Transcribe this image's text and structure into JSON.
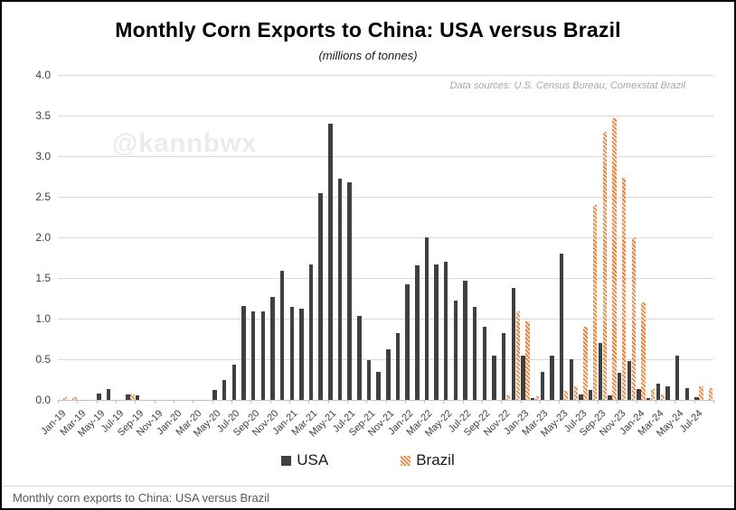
{
  "chart_data": {
    "type": "bar",
    "title": "Monthly Corn Exports to China: USA versus Brazil",
    "subtitle": "(millions of tonnes)",
    "source_note": "Data sources: U.S. Census Bureau; Comexstat Brazil",
    "watermark": "@kannbwx",
    "footer_caption": "Monthly corn exports to China: USA versus Brazil",
    "ylabel": "",
    "xlabel": "",
    "ylim": [
      0,
      4.0
    ],
    "y_ticks": [
      "0.0",
      "0.5",
      "1.0",
      "1.5",
      "2.0",
      "2.5",
      "3.0",
      "3.5",
      "4.0"
    ],
    "grid": true,
    "legend_position": "bottom",
    "x_label_every": 2,
    "categories": [
      "Jan-19",
      "Feb-19",
      "Mar-19",
      "Apr-19",
      "May-19",
      "Jun-19",
      "Jul-19",
      "Aug-19",
      "Sep-19",
      "Oct-19",
      "Nov-19",
      "Dec-19",
      "Jan-20",
      "Feb-20",
      "Mar-20",
      "Apr-20",
      "May-20",
      "Jun-20",
      "Jul-20",
      "Aug-20",
      "Sep-20",
      "Oct-20",
      "Nov-20",
      "Dec-20",
      "Jan-21",
      "Feb-21",
      "Mar-21",
      "Apr-21",
      "May-21",
      "Jun-21",
      "Jul-21",
      "Aug-21",
      "Sep-21",
      "Oct-21",
      "Nov-21",
      "Dec-21",
      "Jan-22",
      "Feb-22",
      "Mar-22",
      "Apr-22",
      "May-22",
      "Jun-22",
      "Jul-22",
      "Aug-22",
      "Sep-22",
      "Oct-22",
      "Nov-22",
      "Dec-22",
      "Jan-23",
      "Feb-23",
      "Mar-23",
      "Apr-23",
      "May-23",
      "Jun-23",
      "Jul-23",
      "Aug-23",
      "Sep-23",
      "Oct-23",
      "Nov-23",
      "Dec-23",
      "Jan-24",
      "Feb-24",
      "Mar-24",
      "Apr-24",
      "May-24",
      "Jun-24",
      "Jul-24",
      "Aug-24"
    ],
    "series": [
      {
        "name": "USA",
        "color": "#404040",
        "fill": "solid",
        "values": [
          0,
          0,
          0,
          0,
          0.08,
          0.13,
          0,
          0.07,
          0.06,
          0,
          0,
          0,
          0,
          0,
          0,
          0,
          0.12,
          0.25,
          0.43,
          1.16,
          1.09,
          1.09,
          1.27,
          1.59,
          1.15,
          1.12,
          1.67,
          2.55,
          3.4,
          2.72,
          2.68,
          1.03,
          0.49,
          0.34,
          0.62,
          0.82,
          1.42,
          1.66,
          2.0,
          1.67,
          1.7,
          1.22,
          1.47,
          1.14,
          0.9,
          0.55,
          0.82,
          1.38,
          0.54,
          0.02,
          0.35,
          0.55,
          1.8,
          0.5,
          0.07,
          0.12,
          0.7,
          0.06,
          0.33,
          0.48,
          0.13,
          0.02,
          0.2,
          0.17,
          0.55,
          0.15,
          0.03,
          0
        ]
      },
      {
        "name": "Brazil",
        "color": "#ed7d31",
        "fill": "diagonal-stripes",
        "values": [
          0.03,
          0.03,
          0,
          0,
          0,
          0,
          0,
          0.07,
          0,
          0,
          0,
          0,
          0,
          0,
          0,
          0,
          0,
          0,
          0,
          0,
          0,
          0,
          0,
          0,
          0,
          0,
          0,
          0,
          0,
          0,
          0,
          0,
          0,
          0,
          0,
          0,
          0,
          0,
          0,
          0,
          0,
          0,
          0,
          0,
          0,
          0,
          0.06,
          1.09,
          0.97,
          0.05,
          0,
          0,
          0.11,
          0.17,
          0.9,
          2.4,
          3.3,
          3.47,
          2.73,
          2.0,
          1.2,
          0.13,
          0.07,
          0,
          0,
          0,
          0.17,
          0.15
        ]
      }
    ]
  },
  "colors": {
    "usa_bar": "#404040",
    "brazil_stripe": "#ed7d31",
    "brazil_stripe_bg": "#fdeade",
    "gridline": "#d9d9d9",
    "axis_line": "#bfbfbf",
    "watermark": "#ebebeb",
    "source_note": "#a6a6a6",
    "footer_caption": "#595959"
  }
}
